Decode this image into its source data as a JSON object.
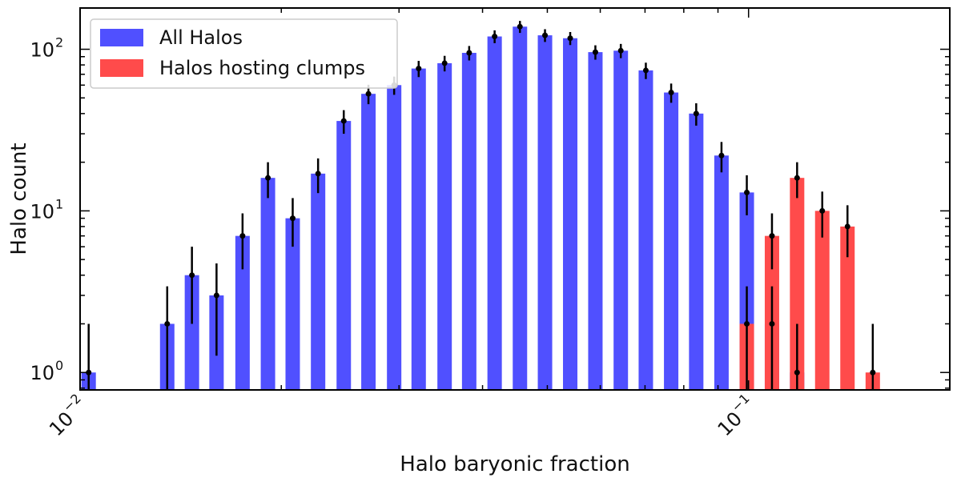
{
  "chart_data": {
    "type": "bar",
    "xscale": "log",
    "yscale": "log",
    "xlabel": "Halo baryonic fraction",
    "ylabel": "Halo count",
    "xlim": [
      0.01,
      0.2
    ],
    "ylim": [
      0.78,
      180
    ],
    "xticks": [
      {
        "value": 0.01,
        "base": "10",
        "exp": "−2"
      },
      {
        "value": 0.1,
        "base": "10",
        "exp": "−1"
      }
    ],
    "yticks": [
      {
        "value": 1,
        "base": "10",
        "exp": "0"
      },
      {
        "value": 10,
        "base": "10",
        "exp": "1"
      },
      {
        "value": 100,
        "base": "10",
        "exp": "2"
      }
    ],
    "legend": {
      "position": "top-left",
      "entries": [
        {
          "label": "All Halos",
          "color": "#5050ff"
        },
        {
          "label": "Halos hosting clumps",
          "color": "#ff4b4b"
        }
      ]
    },
    "series": [
      {
        "name": "All Halos",
        "color": "#5050ff",
        "x": [
          0.0103,
          0.0123,
          0.0135,
          0.0147,
          0.016,
          0.0175,
          0.0191,
          0.0208,
          0.0227,
          0.0248,
          0.027,
          0.0295,
          0.0321,
          0.0351,
          0.0382,
          0.0417,
          0.0455,
          0.0496,
          0.0541,
          0.059,
          0.0644,
          0.0702,
          0.0766,
          0.0835,
          0.0911,
          0.0994,
          0.1084,
          0.1182,
          0.1289,
          0.1406,
          0.1534,
          0.1673,
          0.1825
        ],
        "values": [
          1,
          0,
          2,
          4,
          3,
          7,
          16,
          9,
          17,
          36,
          53,
          60,
          76,
          82,
          95,
          120,
          138,
          122,
          117,
          96,
          98,
          74,
          54,
          40,
          22,
          13,
          2,
          1,
          0,
          0,
          0,
          0,
          0
        ],
        "errors": [
          1,
          0,
          1.41,
          2,
          1.73,
          2.65,
          4,
          3,
          4.12,
          6,
          7.28,
          7.75,
          8.72,
          9.06,
          9.75,
          10.95,
          11.75,
          11.05,
          10.82,
          9.8,
          9.9,
          8.6,
          7.35,
          6.32,
          4.69,
          3.61,
          1.41,
          1,
          0,
          0,
          0,
          0,
          0
        ]
      },
      {
        "name": "Halos hosting clumps",
        "color": "#ff4b4b",
        "x": [
          0.0994,
          0.1084,
          0.1182,
          0.1289,
          0.1406,
          0.1534,
          0.1673,
          0.1825
        ],
        "values": [
          2,
          7,
          16,
          10,
          8,
          1,
          0,
          0
        ],
        "errors": [
          1.41,
          2.65,
          4,
          3.16,
          2.83,
          1,
          0,
          0
        ]
      }
    ]
  }
}
